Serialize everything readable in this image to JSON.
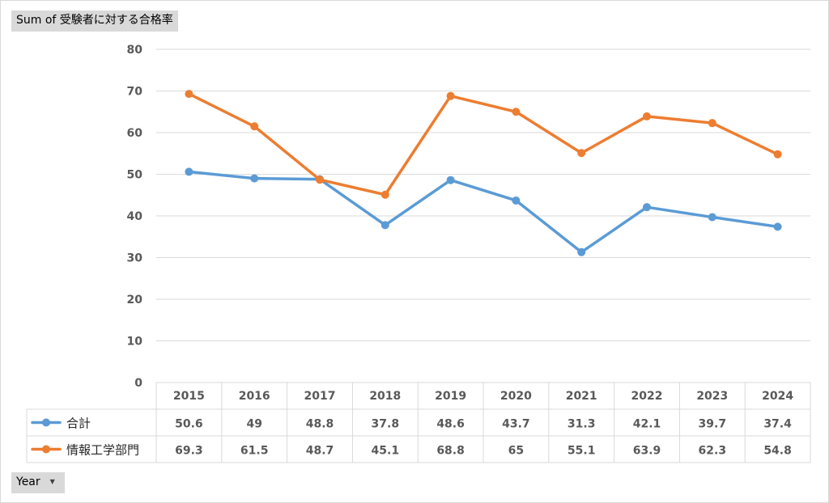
{
  "value_field_button": {
    "label": "Sum of 受験者に対する合格率"
  },
  "axis_field_button": {
    "label": "Year",
    "icon": "dropdown-arrow-icon"
  },
  "chart_data": {
    "type": "line",
    "ylim": [
      0,
      80
    ],
    "yticks": [
      0,
      10,
      20,
      30,
      40,
      50,
      60,
      70,
      80
    ],
    "categories": [
      "2015",
      "2016",
      "2017",
      "2018",
      "2019",
      "2020",
      "2021",
      "2022",
      "2023",
      "2024"
    ],
    "series": [
      {
        "name": "合計",
        "color": "#5b9bd5",
        "values": [
          50.6,
          49,
          48.8,
          37.8,
          48.6,
          43.7,
          31.3,
          42.1,
          39.7,
          37.4
        ]
      },
      {
        "name": "情報工学部門",
        "color": "#ed7d31",
        "values": [
          69.3,
          61.5,
          48.7,
          45.1,
          68.8,
          65,
          55.1,
          63.9,
          62.3,
          54.8
        ]
      }
    ],
    "data_table": true,
    "grid": true
  }
}
